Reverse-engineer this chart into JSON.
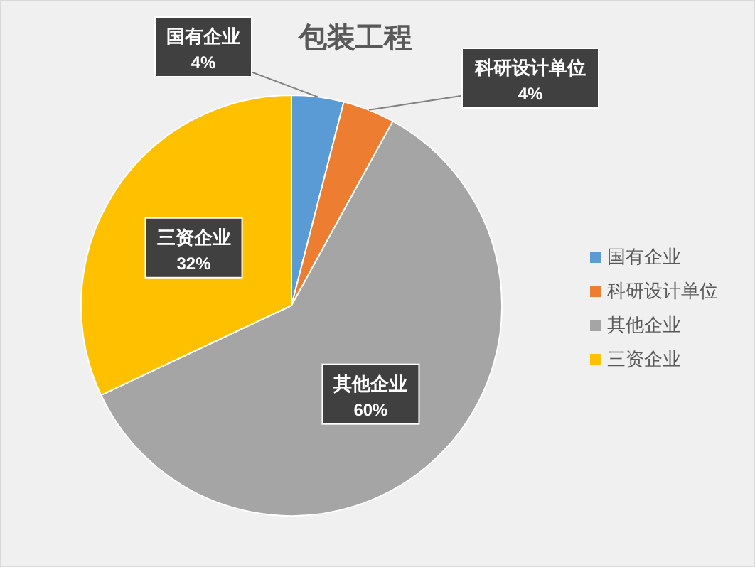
{
  "chart_data": {
    "type": "pie",
    "title": "包装工程",
    "categories": [
      "国有企业",
      "科研设计单位",
      "其他企业",
      "三资企业"
    ],
    "values": [
      4,
      4,
      60,
      32
    ],
    "colors": [
      "#5b9bd5",
      "#ed7d31",
      "#a5a5a5",
      "#ffc000"
    ],
    "value_labels": [
      "4%",
      "4%",
      "60%",
      "32%"
    ],
    "legend": "right"
  }
}
